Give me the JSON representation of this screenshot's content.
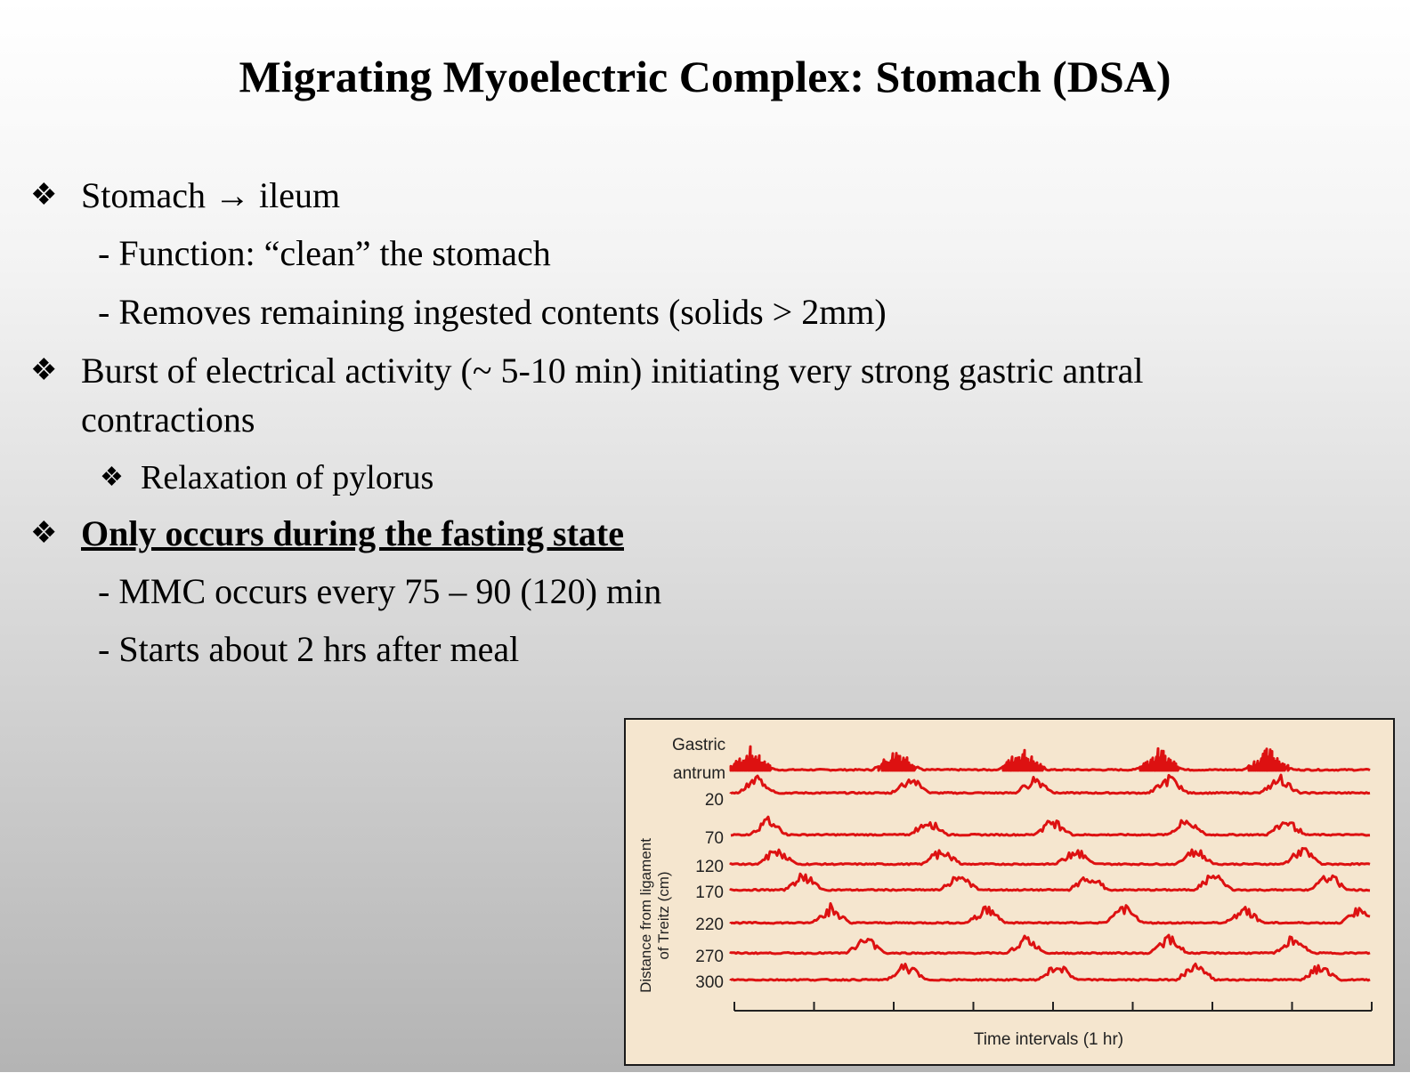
{
  "slide": {
    "title": "Migrating Myoelectric Complex: Stomach (DSA)",
    "bullet_symbol": "❖",
    "items": [
      {
        "text": "Stomach → ileum"
      },
      {
        "text": "- Function: “clean” the stomach"
      },
      {
        "text": "- Removes remaining ingested contents (solids > 2mm)"
      },
      {
        "text_line1": "Burst of electrical activity (~ 5-10 min) initiating very strong gastric antral",
        "text_line2": "contractions"
      },
      {
        "text": "Relaxation of pylorus"
      },
      {
        "text": "Only occurs during the fasting state"
      },
      {
        "text": "- MMC occurs every 75 – 90 (120) min"
      },
      {
        "text": "- Starts about 2 hrs after meal"
      }
    ]
  },
  "figure": {
    "ylabel_line1": "Distance from ligament",
    "ylabel_line2": "of Treitz (cm)",
    "xlabel": "Time intervals (1 hr)",
    "trace_color": "#dd1111",
    "traces": [
      {
        "label_line1": "Gastric",
        "label_line2": "antrum"
      },
      {
        "label": "20"
      },
      {
        "label": "70"
      },
      {
        "label": "120"
      },
      {
        "label": "170"
      },
      {
        "label": "220"
      },
      {
        "label": "270"
      },
      {
        "label": "300"
      }
    ]
  }
}
